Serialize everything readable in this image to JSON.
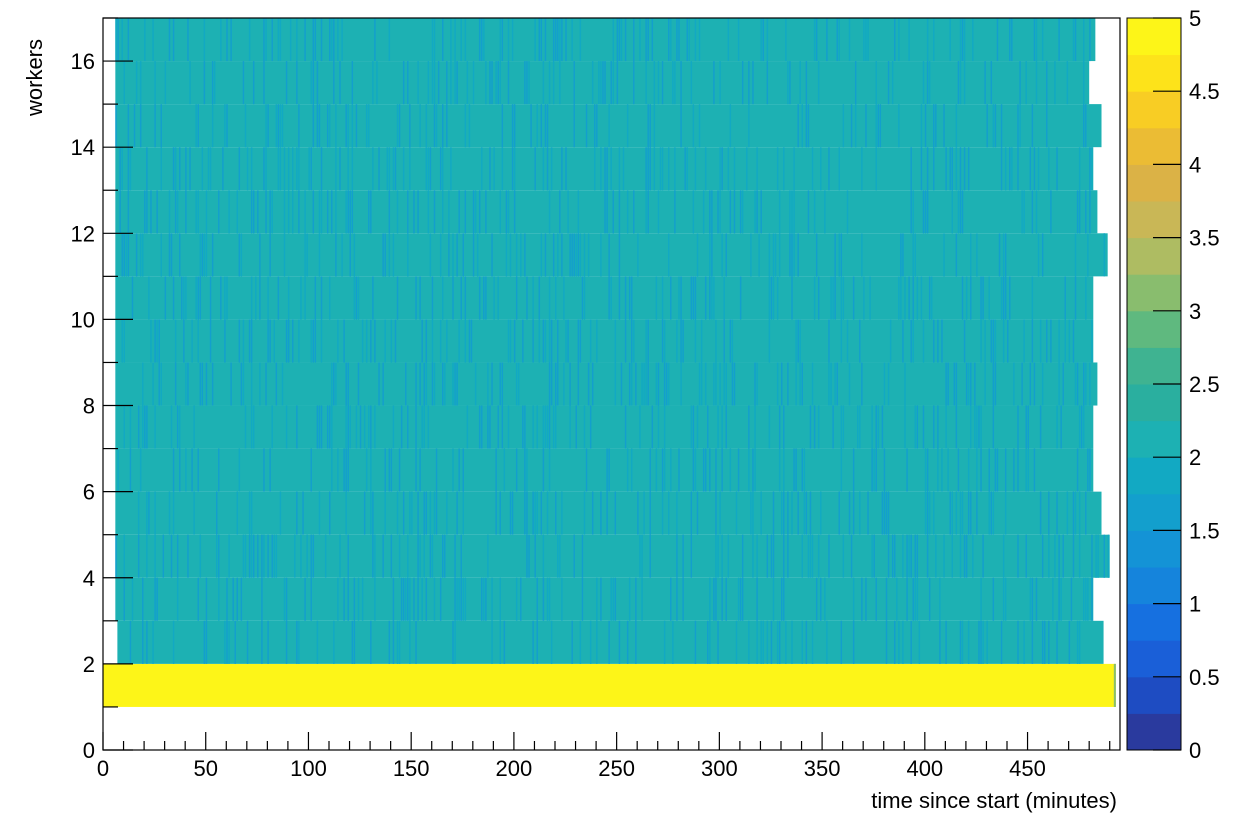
{
  "chart_data": {
    "type": "heatmap",
    "title": "",
    "xlabel": "time since start (minutes)",
    "ylabel": "workers",
    "xlim": [
      0,
      495
    ],
    "ylim": [
      0,
      17
    ],
    "x_ticks": [
      0,
      50,
      100,
      150,
      200,
      250,
      300,
      350,
      400,
      450
    ],
    "x_tick_labels": [
      "0",
      "50",
      "100",
      "150",
      "200",
      "250",
      "300",
      "350",
      "400",
      "450"
    ],
    "y_ticks": [
      0,
      2,
      4,
      6,
      8,
      10,
      12,
      14,
      16
    ],
    "y_tick_labels": [
      "0",
      "2",
      "4",
      "6",
      "8",
      "10",
      "12",
      "14",
      "16"
    ],
    "colorbar": {
      "min": 0,
      "max": 5,
      "ticks": [
        0,
        0.5,
        1,
        1.5,
        2,
        2.5,
        3,
        3.5,
        4,
        4.5,
        5
      ],
      "tick_labels": [
        "0",
        "0.5",
        "1",
        "1.5",
        "2",
        "2.5",
        "3",
        "3.5",
        "4",
        "4.5",
        "5"
      ],
      "palette": [
        "#2a3a9e",
        "#1e4cc2",
        "#1a5fd8",
        "#1670e0",
        "#1584dc",
        "#1493d6",
        "#139fcd",
        "#12a9c3",
        "#1db1b3",
        "#2aaf9f",
        "#3fb391",
        "#5fb97f",
        "#89bd6e",
        "#aebc62",
        "#c9b756",
        "#dbb246",
        "#ebbc34",
        "#f8cd24",
        "#fde31a",
        "#fdf518"
      ]
    },
    "rows": [
      {
        "worker": 1,
        "x_start": 0,
        "x_end": 493,
        "typical_value": 5.0
      },
      {
        "worker": 2,
        "x_start": 7,
        "x_end": 487,
        "typical_value": 2.2
      },
      {
        "worker": 3,
        "x_start": 6,
        "x_end": 482,
        "typical_value": 2.2
      },
      {
        "worker": 4,
        "x_start": 6,
        "x_end": 490,
        "typical_value": 2.2
      },
      {
        "worker": 5,
        "x_start": 6,
        "x_end": 486,
        "typical_value": 2.2
      },
      {
        "worker": 6,
        "x_start": 6,
        "x_end": 482,
        "typical_value": 2.2
      },
      {
        "worker": 7,
        "x_start": 6,
        "x_end": 482,
        "typical_value": 2.2
      },
      {
        "worker": 8,
        "x_start": 6,
        "x_end": 484,
        "typical_value": 2.2
      },
      {
        "worker": 9,
        "x_start": 6,
        "x_end": 482,
        "typical_value": 2.2
      },
      {
        "worker": 10,
        "x_start": 6,
        "x_end": 482,
        "typical_value": 2.2
      },
      {
        "worker": 11,
        "x_start": 6,
        "x_end": 489,
        "typical_value": 2.2
      },
      {
        "worker": 12,
        "x_start": 6,
        "x_end": 484,
        "typical_value": 2.2
      },
      {
        "worker": 13,
        "x_start": 6,
        "x_end": 482,
        "typical_value": 2.2
      },
      {
        "worker": 14,
        "x_start": 6,
        "x_end": 486,
        "typical_value": 2.2
      },
      {
        "worker": 15,
        "x_start": 6,
        "x_end": 480,
        "typical_value": 2.2
      },
      {
        "worker": 16,
        "x_start": 6,
        "x_end": 483,
        "typical_value": 2.2
      }
    ],
    "grid": false,
    "legend": "none"
  }
}
